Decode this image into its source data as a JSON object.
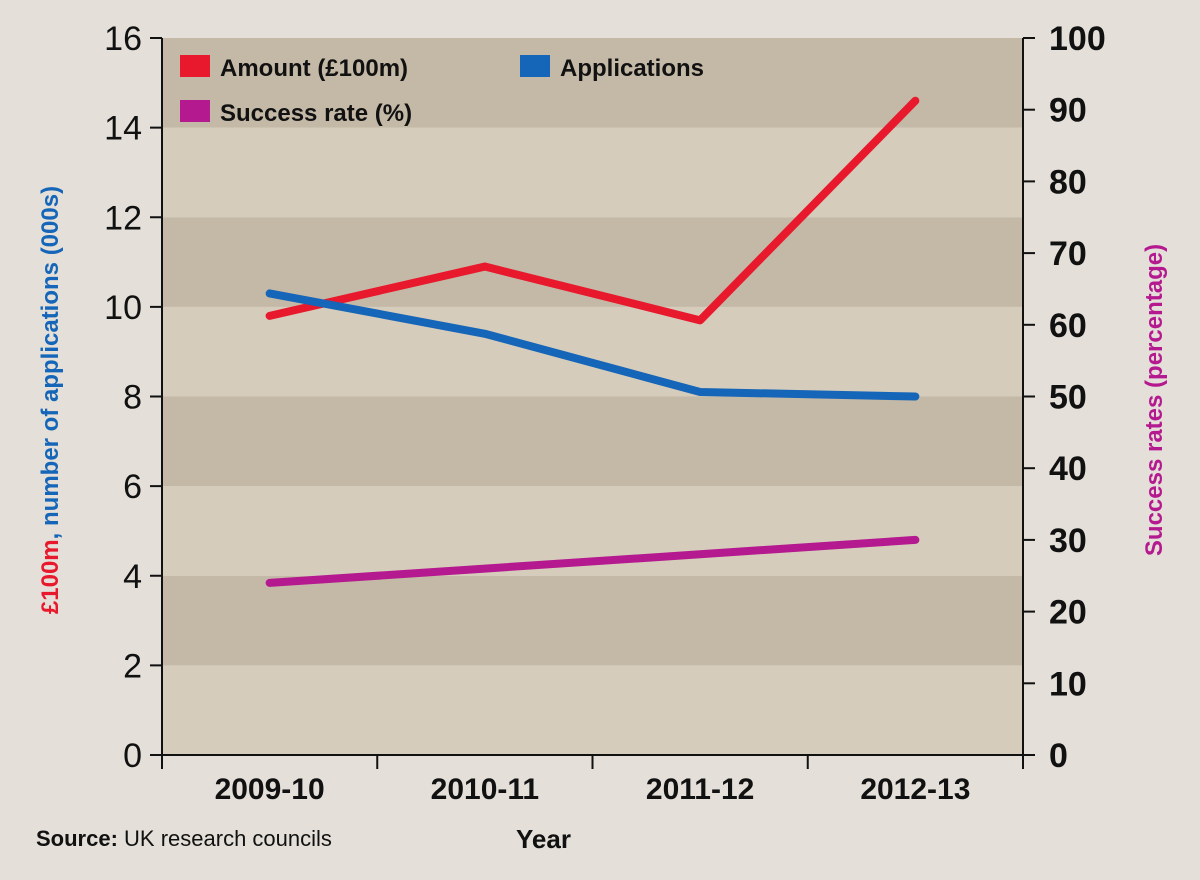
{
  "chart_data": {
    "type": "line",
    "title": "",
    "xlabel": "Year",
    "ylabel_left_parts": [
      {
        "text": "£100m",
        "color": "#e8192c"
      },
      {
        "text": ", ",
        "color": "#1565b8"
      },
      {
        "text": "number of applications (000s)",
        "color": "#1565b8"
      }
    ],
    "ylabel_right": "Success rates (percentage)",
    "ylabel_right_color": "#b5198f",
    "categories": [
      "2009-10",
      "2010-11",
      "2011-12",
      "2012-13"
    ],
    "y_left": {
      "range": [
        0,
        16
      ],
      "ticks": [
        "0",
        "2",
        "4",
        "6",
        "8",
        "10",
        "12",
        "14",
        "16"
      ],
      "tick_values": [
        0,
        2,
        4,
        6,
        8,
        10,
        12,
        14,
        16
      ]
    },
    "y_right": {
      "range": [
        0,
        100
      ],
      "ticks": [
        "0",
        "10",
        "20",
        "30",
        "40",
        "50",
        "60",
        "70",
        "80",
        "90",
        "100"
      ],
      "tick_values": [
        0,
        10,
        20,
        30,
        40,
        50,
        60,
        70,
        80,
        90,
        100
      ]
    },
    "series": [
      {
        "name": "Amount (£100m)",
        "axis": "left",
        "color": "#e8192c",
        "values": [
          9.8,
          10.9,
          9.7,
          14.6
        ]
      },
      {
        "name": "Applications",
        "axis": "left",
        "color": "#1565b8",
        "values": [
          10.3,
          9.4,
          8.1,
          8.0
        ]
      },
      {
        "name": "Success rate (%)",
        "axis": "right",
        "color": "#b5198f",
        "values": [
          24,
          26,
          28,
          30
        ]
      }
    ],
    "legend": {
      "placement": "top-left"
    },
    "band_colors": [
      "#d5ccbb",
      "#c4b9a6"
    ],
    "grid": "alternating bands"
  },
  "source": {
    "label": "Source:",
    "text": " UK research councils"
  }
}
